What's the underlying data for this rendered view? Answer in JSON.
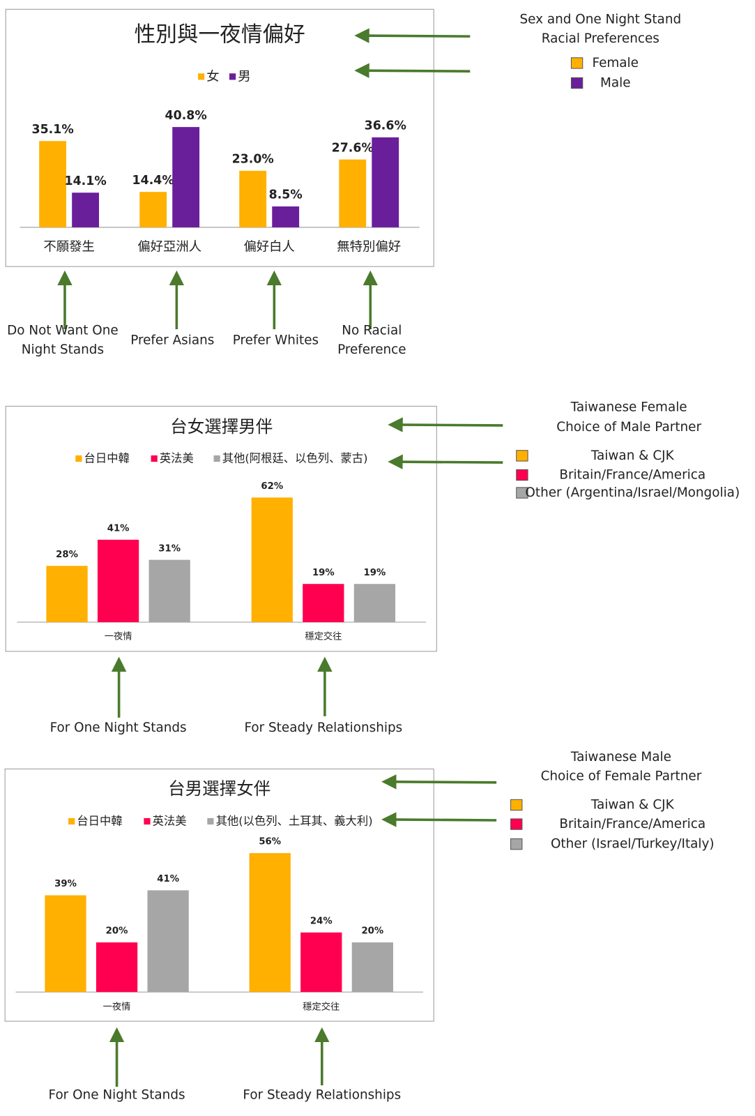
{
  "chart_data": [
    {
      "type": "bar",
      "title": "性別與一夜情偏好",
      "categories": [
        "不願發生",
        "偏好亞洲人",
        "偏好白人",
        "無特別偏好"
      ],
      "series": [
        {
          "name": "女",
          "color": "#ffb000",
          "values": [
            35.1,
            14.4,
            23.0,
            27.6
          ],
          "value_labels": [
            "35.1%",
            "14.4%",
            "23.0%",
            "27.6%"
          ]
        },
        {
          "name": "男",
          "color": "#6a1f9a",
          "values": [
            14.1,
            40.8,
            8.5,
            36.6
          ],
          "value_labels": [
            "14.1%",
            "40.8%",
            "8.5%",
            "36.6%"
          ]
        }
      ],
      "note_title": [
        "Sex and One Night Stand",
        "Racial Preferences"
      ],
      "note_legend": [
        "Female",
        "Male"
      ],
      "note_categories": [
        [
          "Do Not Want One",
          "Night Stands"
        ],
        [
          "Prefer Asians"
        ],
        [
          "Prefer Whites"
        ],
        [
          "No Racial",
          "Preference"
        ]
      ]
    },
    {
      "type": "bar",
      "title": "台女選擇男伴",
      "categories": [
        "一夜情",
        "穩定交往"
      ],
      "series": [
        {
          "name": "台日中韓",
          "color": "#ffb000",
          "values": [
            28,
            62
          ],
          "value_labels": [
            "28%",
            "62%"
          ]
        },
        {
          "name": "英法美",
          "color": "#ff0050",
          "values": [
            41,
            19
          ],
          "value_labels": [
            "41%",
            "19%"
          ]
        },
        {
          "name": "其他(阿根廷、以色列、蒙古)",
          "color": "#a6a6a6",
          "values": [
            31,
            19
          ],
          "value_labels": [
            "31%",
            "19%"
          ]
        }
      ],
      "note_title": [
        "Taiwanese Female",
        "Choice of Male Partner"
      ],
      "note_legend": [
        "Taiwan & CJK",
        "Britain/France/America",
        "Other (Argentina/Israel/Mongolia)"
      ],
      "note_categories": [
        [
          "For One Night Stands"
        ],
        [
          "For Steady Relationships"
        ]
      ]
    },
    {
      "type": "bar",
      "title": "台男選擇女伴",
      "categories": [
        "一夜情",
        "穩定交往"
      ],
      "series": [
        {
          "name": "台日中韓",
          "color": "#ffb000",
          "values": [
            39,
            56
          ],
          "value_labels": [
            "39%",
            "56%"
          ]
        },
        {
          "name": "英法美",
          "color": "#ff0050",
          "values": [
            20,
            24
          ],
          "value_labels": [
            "20%",
            "24%"
          ]
        },
        {
          "name": "其他(以色列、土耳其、義大利)",
          "color": "#a6a6a6",
          "values": [
            41,
            20
          ],
          "value_labels": [
            "41%",
            "20%"
          ]
        }
      ],
      "note_title": [
        "Taiwanese Male",
        "Choice of Female Partner"
      ],
      "note_legend": [
        "Taiwan & CJK",
        "Britain/France/America",
        "Other (Israel/Turkey/Italy)"
      ],
      "note_categories": [
        [
          "For One Night Stands"
        ],
        [
          "For Steady Relationships"
        ]
      ]
    }
  ]
}
